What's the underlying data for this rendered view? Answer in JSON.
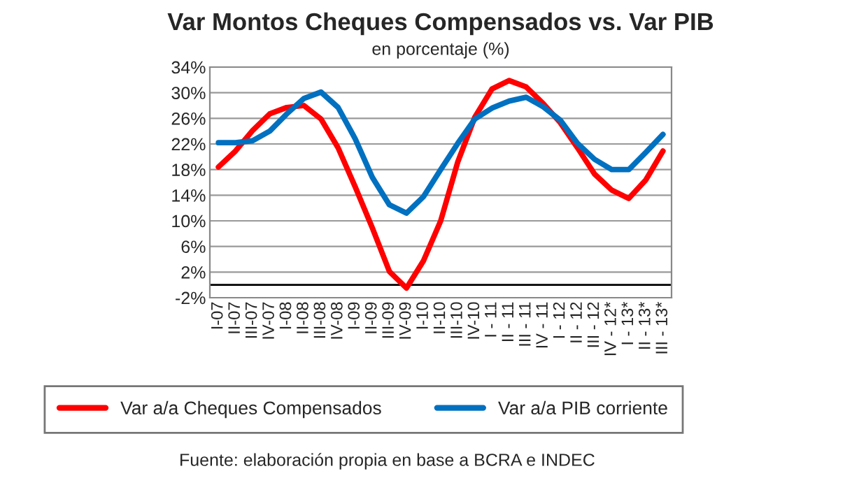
{
  "chart_data": {
    "type": "line",
    "title": "Var Montos Cheques Compensados vs. Var PIB",
    "subtitle": "en porcentaje (%)",
    "categories": [
      "I-07",
      "II-07",
      "III-07",
      "IV-07",
      "I-08",
      "II-08",
      "III-08",
      "IV-08",
      "I-09",
      "II-09",
      "III-09",
      "IV-09",
      "I-10",
      "II-10",
      "III-10",
      "IV-10",
      "I - 11",
      "II - 11",
      "III - 11",
      "IV - 11",
      "I - 12",
      "II - 12",
      "III - 12",
      "IV - 12*",
      "I - 13*",
      "II - 13*",
      "III - 13*"
    ],
    "series": [
      {
        "name": "Var a/a Cheques Compensados",
        "color": "#ff0000",
        "values": [
          18.4,
          20.9,
          24.1,
          26.7,
          27.7,
          28.0,
          25.9,
          21.4,
          15.3,
          8.9,
          2.1,
          -0.5,
          3.8,
          10.0,
          19.2,
          26.2,
          30.6,
          31.9,
          30.9,
          28.3,
          25.3,
          21.4,
          17.3,
          14.8,
          13.5,
          16.4,
          20.9
        ]
      },
      {
        "name": "Var a/a PIB corriente",
        "color": "#0070c0",
        "values": [
          22.2,
          22.2,
          22.5,
          24.0,
          26.7,
          29.1,
          30.1,
          27.7,
          22.8,
          16.8,
          12.5,
          11.2,
          13.8,
          18.0,
          22.1,
          25.9,
          27.6,
          28.7,
          29.3,
          27.8,
          25.7,
          22.1,
          19.6,
          18.0,
          18.0,
          20.7,
          23.5
        ]
      }
    ],
    "ylim": [
      -2,
      34
    ],
    "yticks": [
      {
        "value": -2,
        "label": "-2%"
      },
      {
        "value": 2,
        "label": "2%"
      },
      {
        "value": 6,
        "label": "6%"
      },
      {
        "value": 10,
        "label": "10%"
      },
      {
        "value": 14,
        "label": "14%"
      },
      {
        "value": 18,
        "label": "18%"
      },
      {
        "value": 22,
        "label": "22%"
      },
      {
        "value": 26,
        "label": "26%"
      },
      {
        "value": 30,
        "label": "30%"
      },
      {
        "value": 34,
        "label": "34%"
      }
    ],
    "ref_lines": [
      {
        "axis": "y",
        "value": 0,
        "color": "#000000"
      }
    ],
    "grid": "y",
    "legend": "bottom",
    "marker": "none",
    "line_style": "solid",
    "annotations": [
      "Fuente: elaboración propia en base a BCRA e INDEC"
    ]
  }
}
